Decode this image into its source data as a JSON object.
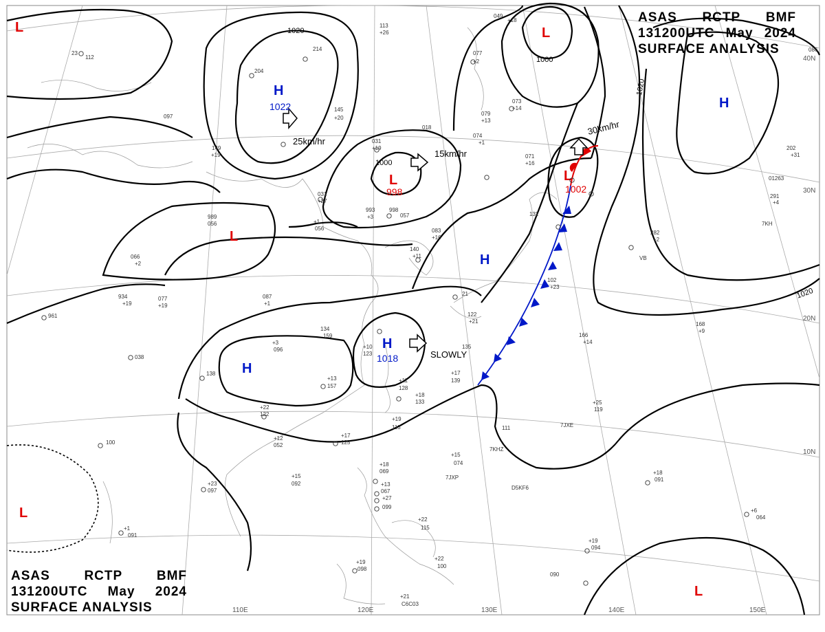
{
  "title": {
    "line1": [
      "ASAS",
      "RCTP",
      "BMF"
    ],
    "line2": [
      "131200UTC",
      "May",
      "2024"
    ],
    "line3": "SURFACE ANALYSIS"
  },
  "grid_labels": {
    "longitudes": [
      "110E",
      "120E",
      "130E",
      "140E",
      "150E"
    ],
    "latitudes": [
      "40N",
      "30N",
      "20N",
      "10N"
    ]
  },
  "isobar_labels": [
    "1020",
    "1000",
    "1020",
    "1020",
    "1000"
  ],
  "pressure_centers": [
    {
      "type": "H",
      "value": "1022",
      "color": "#0018c8"
    },
    {
      "type": "L",
      "value": "998",
      "color": "#e00000"
    },
    {
      "type": "L",
      "value": "1002",
      "color": "#e00000"
    },
    {
      "type": "H",
      "value": "1018",
      "color": "#0018c8"
    },
    {
      "type": "H",
      "value": "",
      "color": "#0018c8"
    },
    {
      "type": "H",
      "value": "",
      "color": "#0018c8"
    },
    {
      "type": "H",
      "value": "",
      "color": "#0018c8"
    },
    {
      "type": "L",
      "value": "",
      "color": "#e00000"
    },
    {
      "type": "L",
      "value": "",
      "color": "#e00000"
    },
    {
      "type": "L",
      "value": "",
      "color": "#e00000"
    },
    {
      "type": "L",
      "value": "",
      "color": "#e00000"
    },
    {
      "type": "L",
      "value": "",
      "color": "#e00000"
    }
  ],
  "movements": [
    "25km/hr",
    "15km/hr",
    "30km/hr",
    "SLOWLY"
  ],
  "stations": [
    "23",
    "112",
    "204",
    "214",
    "113",
    "+26",
    "145",
    "+20",
    "018",
    "079",
    "+13",
    "073",
    "+14",
    "077",
    "+2",
    "049",
    "+18",
    "097",
    "149",
    "+19",
    "031",
    "+19",
    "074",
    "+1",
    "071",
    "+16",
    "086",
    "202",
    "+31",
    "998",
    "031",
    "+27",
    "993",
    "+3",
    "057",
    "083",
    "+16",
    "132",
    "291",
    "+4",
    "989",
    "056",
    "+1",
    "056",
    "066",
    "+2",
    "140",
    "+11",
    "102",
    "+23",
    "282",
    "+2",
    "934",
    "+19",
    "077",
    "+19",
    "087",
    "+1",
    "21",
    "122",
    "+21",
    "166",
    "+14",
    "168",
    "+9",
    "961",
    "038",
    "134",
    "159",
    "+10",
    "123",
    "135",
    "+17",
    "139",
    "+3",
    "096",
    "138",
    "+13",
    "157",
    "+11",
    "128",
    "+18",
    "133",
    "+25",
    "119",
    "+22",
    "122",
    "+17",
    "125",
    "111",
    "+12",
    "052",
    "+19",
    "113",
    "+15",
    "074",
    "100",
    "+15",
    "092",
    "+23",
    "097",
    "+18",
    "069",
    "+13",
    "067",
    "+27",
    "099",
    "+22",
    "115",
    "+18",
    "091",
    "+6",
    "064",
    "+1",
    "091",
    "+19",
    "098",
    "+22",
    "100",
    "+19",
    "094",
    "090",
    "+21",
    "C6C03",
    "7JXP",
    "D5KF6",
    "7JXE",
    "7KHZ",
    "7KH",
    "01263",
    "VB"
  ]
}
